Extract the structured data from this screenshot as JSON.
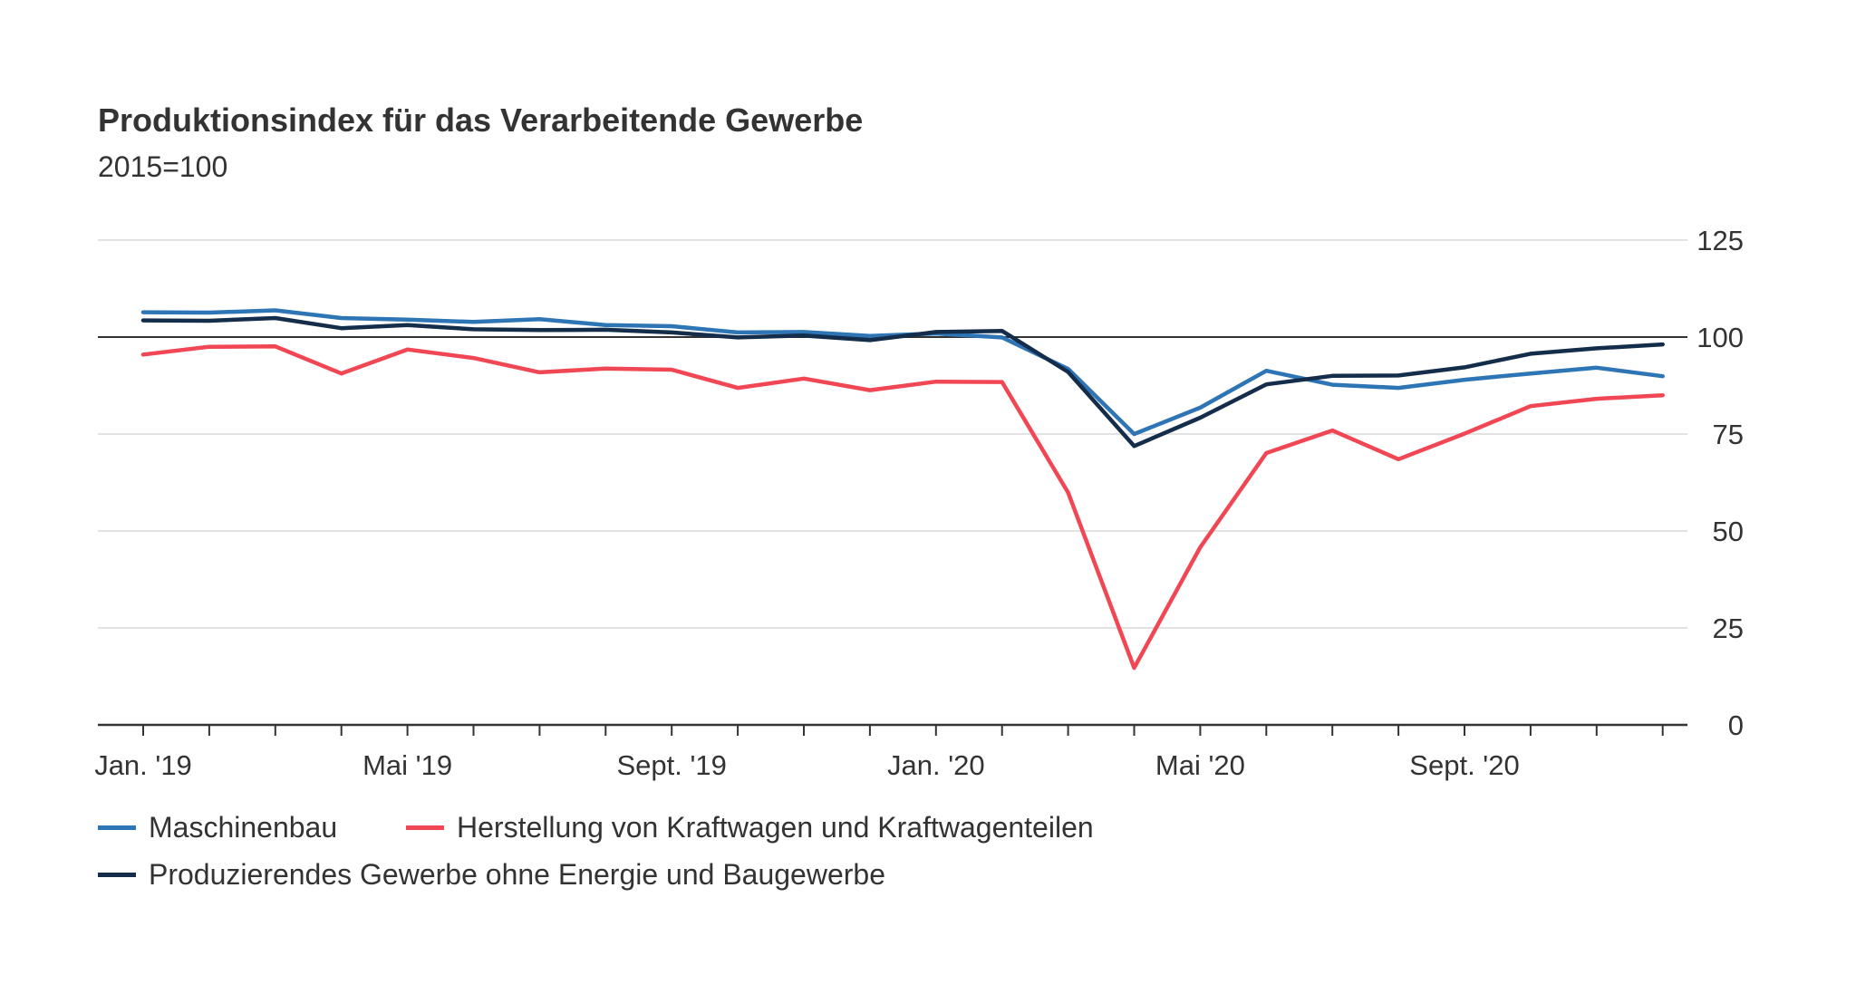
{
  "chart_data": {
    "type": "line",
    "title": "Produktionsindex für das Verarbeitende Gewerbe",
    "subtitle": "2015=100",
    "xlabel": "",
    "ylabel": "",
    "ylim": [
      0,
      125
    ],
    "yticks": [
      0,
      25,
      50,
      75,
      100,
      125
    ],
    "reference_line": 100,
    "grid": true,
    "legend_position": "bottom-left",
    "x": [
      "2019-01",
      "2019-02",
      "2019-03",
      "2019-04",
      "2019-05",
      "2019-06",
      "2019-07",
      "2019-08",
      "2019-09",
      "2019-10",
      "2019-11",
      "2019-12",
      "2020-01",
      "2020-02",
      "2020-03",
      "2020-04",
      "2020-05",
      "2020-06",
      "2020-07",
      "2020-08",
      "2020-09",
      "2020-10",
      "2020-11",
      "2020-12"
    ],
    "x_tick_labels": [
      {
        "index": 0,
        "label": "Jan. '19"
      },
      {
        "index": 4,
        "label": "Mai '19"
      },
      {
        "index": 8,
        "label": "Sept. '19"
      },
      {
        "index": 12,
        "label": "Jan. '20"
      },
      {
        "index": 16,
        "label": "Mai '20"
      },
      {
        "index": 20,
        "label": "Sept. '20"
      }
    ],
    "series": [
      {
        "name": "Maschinenbau",
        "color": "#2e75b6",
        "values": [
          106.4,
          106.3,
          106.9,
          104.9,
          104.5,
          103.9,
          104.6,
          103.1,
          102.8,
          101.2,
          101.3,
          100.3,
          100.9,
          99.9,
          91.8,
          75.0,
          81.8,
          91.3,
          87.7,
          86.9,
          89.0,
          90.6,
          92.1,
          89.9
        ]
      },
      {
        "name": "Herstellung von Kraftwagen und Kraftwagenteilen",
        "color": "#f14754",
        "values": [
          95.5,
          97.5,
          97.6,
          90.6,
          96.8,
          94.6,
          90.9,
          91.9,
          91.6,
          86.9,
          89.3,
          86.3,
          88.5,
          88.4,
          59.9,
          14.7,
          45.8,
          70.1,
          75.9,
          68.5,
          75.1,
          82.2,
          84.1,
          85.0
        ]
      },
      {
        "name": "Produzierendes Gewerbe ohne Energie und Baugewerbe",
        "color": "#132d4a",
        "values": [
          104.3,
          104.2,
          104.9,
          102.3,
          103.1,
          102.0,
          101.8,
          101.9,
          101.2,
          99.9,
          100.4,
          99.2,
          101.3,
          101.6,
          91.0,
          71.9,
          79.2,
          87.8,
          90.0,
          90.1,
          92.2,
          95.7,
          97.1,
          98.1
        ]
      }
    ]
  }
}
